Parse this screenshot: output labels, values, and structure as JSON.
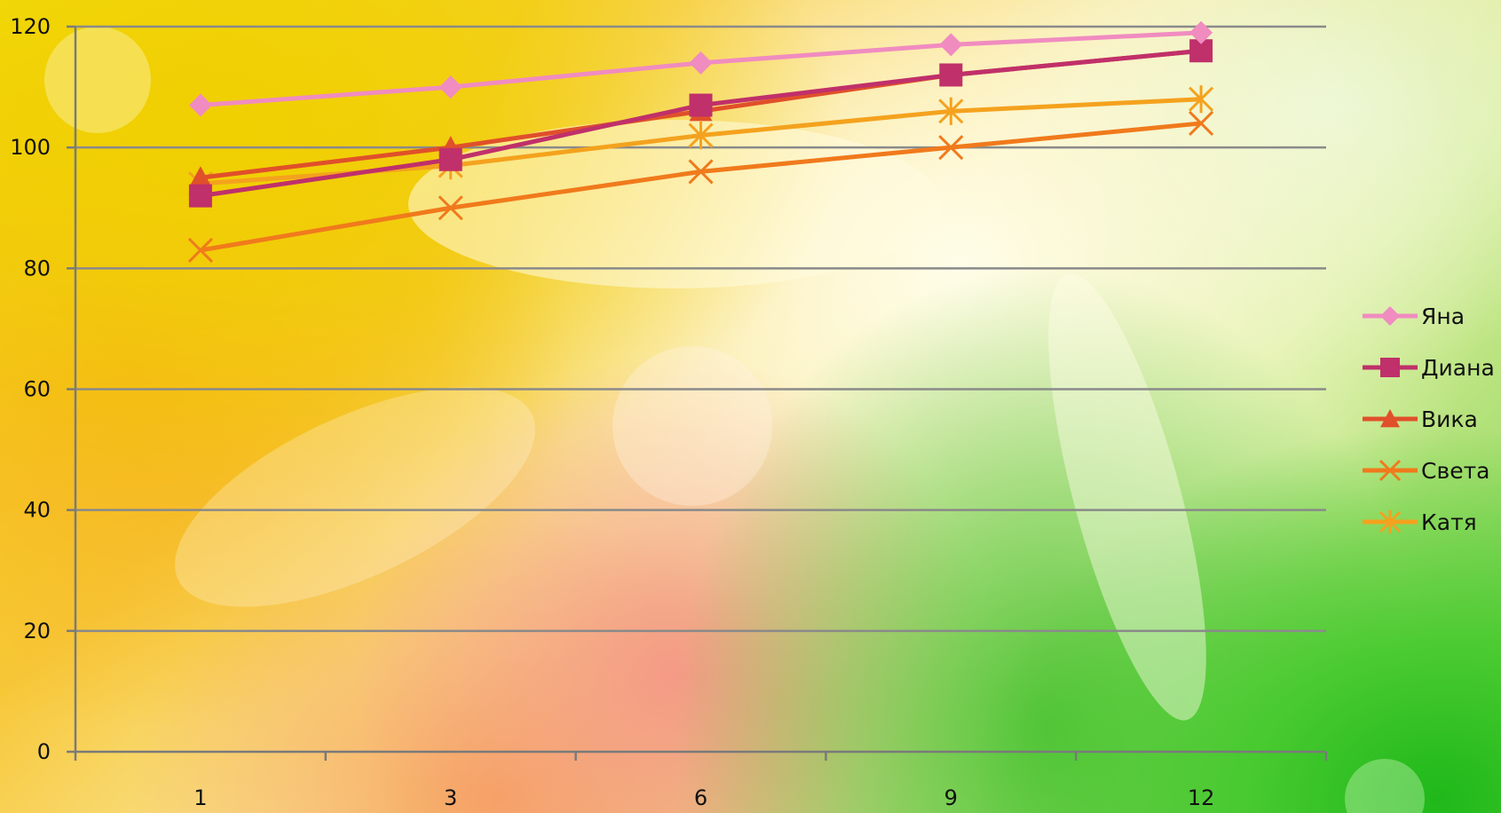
{
  "chart_data": {
    "type": "line",
    "x": [
      "1",
      "3",
      "6",
      "9",
      "12"
    ],
    "ylim": [
      0,
      120
    ],
    "yticks": [
      0,
      20,
      40,
      60,
      80,
      100,
      120
    ],
    "grid": true,
    "legend_position": "right",
    "series": [
      {
        "name": "Яна",
        "values": [
          107,
          110,
          114,
          117,
          119
        ],
        "color": "#f08cc0",
        "marker": "diamond"
      },
      {
        "name": "Диана",
        "values": [
          92,
          98,
          107,
          112,
          116
        ],
        "color": "#c0306a",
        "marker": "square"
      },
      {
        "name": "Вика",
        "values": [
          95,
          100,
          106,
          112,
          116
        ],
        "color": "#e0502a",
        "marker": "triangle"
      },
      {
        "name": "Света",
        "values": [
          83,
          90,
          96,
          100,
          104
        ],
        "color": "#f07a1c",
        "marker": "x"
      },
      {
        "name": "Катя",
        "values": [
          94,
          97,
          102,
          106,
          108
        ],
        "color": "#f4a21e",
        "marker": "star"
      }
    ]
  }
}
